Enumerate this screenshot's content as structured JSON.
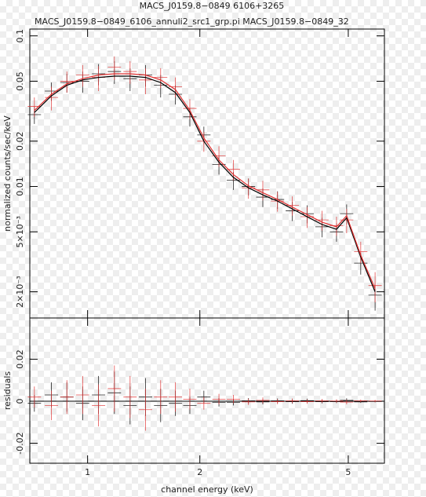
{
  "title": "MACS_J0159.8−0849 6106+3265",
  "subtitle": "MACS_J0159.8−0849_6106_annuli2_src1_grp.pi MACS_J0159.8−0849_32",
  "chart_data": [
    {
      "type": "errorbar",
      "ylabel": "normalized counts/sec/keV",
      "xlog": true,
      "ylog": true,
      "xlim": [
        0.7,
        6.25
      ],
      "ylim": [
        0.00134,
        0.111
      ],
      "xticks": [
        1,
        2,
        5
      ],
      "yticks": [
        0.1,
        0.05,
        0.02,
        0.01,
        {
          "value": 0.005,
          "label": "5×10⁻³"
        },
        {
          "value": 0.002,
          "label": "2×10⁻³"
        }
      ],
      "x": [
        0.72,
        0.8,
        0.88,
        0.97,
        1.07,
        1.18,
        1.3,
        1.43,
        1.57,
        1.72,
        1.88,
        2.05,
        2.25,
        2.46,
        2.7,
        2.95,
        3.23,
        3.54,
        3.88,
        4.25,
        4.65,
        4.95,
        5.4,
        5.9
      ],
      "series": [
        {
          "color": "#000000",
          "values": [
            0.03,
            0.043,
            0.049,
            0.05,
            0.056,
            0.058,
            0.052,
            0.055,
            0.047,
            0.041,
            0.029,
            0.022,
            0.014,
            0.011,
            0.01,
            0.0085,
            0.0082,
            0.0069,
            0.0066,
            0.0054,
            0.005,
            0.0066,
            0.0031,
            0.0019
          ],
          "errors": [
            0.004,
            0.006,
            0.007,
            0.008,
            0.009,
            0.01,
            0.009,
            0.009,
            0.008,
            0.006,
            0.004,
            0.003,
            0.002,
            0.0015,
            0.0013,
            0.0012,
            0.0011,
            0.001,
            0.0009,
            0.0008,
            0.0007,
            0.001,
            0.0005,
            0.0004
          ]
        },
        {
          "color": "#e03030",
          "values": [
            0.034,
            0.039,
            0.05,
            0.055,
            0.053,
            0.062,
            0.058,
            0.051,
            0.053,
            0.046,
            0.033,
            0.02,
            0.016,
            0.013,
            0.0098,
            0.0095,
            0.008,
            0.0075,
            0.0063,
            0.006,
            0.0055,
            0.006,
            0.0037,
            0.0022
          ],
          "errors": [
            0.005,
            0.007,
            0.008,
            0.009,
            0.01,
            0.011,
            0.01,
            0.01,
            0.008,
            0.007,
            0.005,
            0.003,
            0.0025,
            0.002,
            0.0015,
            0.0014,
            0.0012,
            0.0011,
            0.001,
            0.0009,
            0.0008,
            0.0011,
            0.0006,
            0.0005
          ]
        },
        {
          "color": "#000000",
          "values": [
            0.031,
            0.04,
            0.047,
            0.051,
            0.053,
            0.054,
            0.054,
            0.053,
            0.049,
            0.042,
            0.031,
            0.02,
            0.0145,
            0.0115,
            0.0098,
            0.0088,
            0.008,
            0.0071,
            0.0063,
            0.0056,
            0.0052,
            0.0062,
            0.0034,
            0.002
          ]
        },
        {
          "color": "#e03030",
          "values": [
            0.032,
            0.041,
            0.048,
            0.052,
            0.055,
            0.056,
            0.056,
            0.055,
            0.051,
            0.044,
            0.032,
            0.021,
            0.015,
            0.012,
            0.0101,
            0.0091,
            0.0082,
            0.0073,
            0.0065,
            0.0058,
            0.0054,
            0.0064,
            0.0035,
            0.0021
          ]
        }
      ]
    },
    {
      "type": "errorbar",
      "ylabel": "residuals",
      "xlabel": "channel energy (keV)",
      "xlog": true,
      "ylog": false,
      "xlim": [
        0.7,
        6.25
      ],
      "ylim": [
        -0.0295,
        0.0396
      ],
      "xticks": [
        1,
        2,
        5
      ],
      "yticks": [
        0.02,
        0,
        -0.02
      ],
      "x": [
        0.72,
        0.8,
        0.88,
        0.97,
        1.07,
        1.18,
        1.3,
        1.43,
        1.57,
        1.72,
        1.88,
        2.05,
        2.25,
        2.46,
        2.7,
        2.95,
        3.23,
        3.54,
        3.88,
        4.25,
        4.65,
        4.95,
        5.4,
        5.9
      ],
      "series": [
        {
          "color": "#000000",
          "values": [
            -0.001,
            0.003,
            0.002,
            -0.001,
            0.003,
            0.004,
            -0.002,
            0.002,
            -0.002,
            -0.001,
            -0.002,
            0.002,
            -0.0005,
            -0.0005,
            0.0002,
            -0.0003,
            0.0002,
            -0.0002,
            0.0003,
            -0.0002,
            -0.0002,
            0.0004,
            -0.0003,
            -0.0001
          ],
          "errors": [
            0.004,
            0.006,
            0.007,
            0.008,
            0.009,
            0.01,
            0.009,
            0.009,
            0.008,
            0.006,
            0.004,
            0.003,
            0.002,
            0.0015,
            0.0013,
            0.0012,
            0.0011,
            0.001,
            0.0009,
            0.0008,
            0.0007,
            0.001,
            0.0005,
            0.0004
          ]
        },
        {
          "color": "#e03030",
          "values": [
            0.002,
            -0.002,
            0.002,
            0.003,
            -0.002,
            0.006,
            0.002,
            -0.004,
            0.002,
            0.002,
            0.001,
            -0.001,
            0.001,
            0.001,
            -0.0003,
            0.0004,
            -0.0002,
            0.0002,
            -0.0002,
            0.0002,
            0.0001,
            -0.0004,
            0.0002,
            0.0001
          ],
          "errors": [
            0.005,
            0.007,
            0.008,
            0.009,
            0.01,
            0.011,
            0.01,
            0.01,
            0.008,
            0.007,
            0.005,
            0.003,
            0.0025,
            0.002,
            0.0015,
            0.0014,
            0.0012,
            0.0011,
            0.001,
            0.0009,
            0.0008,
            0.0011,
            0.0006,
            0.0005
          ]
        }
      ]
    }
  ]
}
